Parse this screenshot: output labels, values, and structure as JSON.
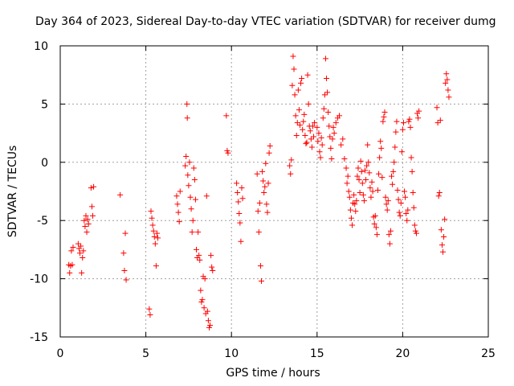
{
  "chart_data": {
    "type": "scatter",
    "title": "Day 364 of 2023, Sidereal Day-to-day VTEC variation (SDTVAR) for receiver dumg",
    "xlabel": "GPS time / hours",
    "ylabel": "SDTVAR / TECUs",
    "xlim": [
      0,
      25
    ],
    "ylim": [
      -15,
      10
    ],
    "xticks": [
      0,
      5,
      10,
      15,
      20,
      25
    ],
    "yticks": [
      -15,
      -10,
      -5,
      0,
      5,
      10
    ],
    "grid": true,
    "marker": "+",
    "color": "#ff0000",
    "points": [
      [
        0.5,
        -8.8
      ],
      [
        0.55,
        -9.5
      ],
      [
        0.6,
        -8.9
      ],
      [
        0.65,
        -7.6
      ],
      [
        0.7,
        -8.8
      ],
      [
        0.75,
        -7.3
      ],
      [
        1.05,
        -7.0
      ],
      [
        1.1,
        -7.4
      ],
      [
        1.15,
        -7.8
      ],
      [
        1.2,
        -7.2
      ],
      [
        1.25,
        -9.5
      ],
      [
        1.3,
        -8.2
      ],
      [
        1.35,
        -7.6
      ],
      [
        1.4,
        -5.0
      ],
      [
        1.45,
        -5.5
      ],
      [
        1.5,
        -4.6
      ],
      [
        1.55,
        -6.0
      ],
      [
        1.6,
        -4.9
      ],
      [
        1.65,
        -5.3
      ],
      [
        1.8,
        -2.2
      ],
      [
        1.85,
        -3.8
      ],
      [
        1.9,
        -4.6
      ],
      [
        1.95,
        -2.1
      ],
      [
        3.5,
        -2.8
      ],
      [
        3.7,
        -7.8
      ],
      [
        3.75,
        -9.3
      ],
      [
        3.8,
        -6.1
      ],
      [
        3.85,
        -10.1
      ],
      [
        5.2,
        -12.6
      ],
      [
        5.25,
        -13.1
      ],
      [
        5.3,
        -4.2
      ],
      [
        5.35,
        -4.8
      ],
      [
        5.4,
        -5.4
      ],
      [
        5.45,
        -5.9
      ],
      [
        5.5,
        -6.4
      ],
      [
        5.55,
        -7.0
      ],
      [
        5.6,
        -8.9
      ],
      [
        5.65,
        -6.1
      ],
      [
        5.7,
        -6.5
      ],
      [
        6.8,
        -2.9
      ],
      [
        6.85,
        -3.6
      ],
      [
        6.9,
        -4.3
      ],
      [
        6.95,
        -5.1
      ],
      [
        7.0,
        -2.5
      ],
      [
        7.3,
        -0.3
      ],
      [
        7.35,
        0.5
      ],
      [
        7.4,
        5.0
      ],
      [
        7.42,
        3.8
      ],
      [
        7.45,
        -1.1
      ],
      [
        7.5,
        -2.0
      ],
      [
        7.55,
        0.0
      ],
      [
        7.6,
        -3.0
      ],
      [
        7.65,
        -4.0
      ],
      [
        7.7,
        -6.0
      ],
      [
        7.75,
        -5.0
      ],
      [
        7.8,
        -0.5
      ],
      [
        7.85,
        -1.5
      ],
      [
        7.9,
        -3.2
      ],
      [
        7.95,
        -7.5
      ],
      [
        8.0,
        -8.2
      ],
      [
        8.05,
        -6.0
      ],
      [
        8.1,
        -8.0
      ],
      [
        8.15,
        -8.4
      ],
      [
        8.2,
        -11.0
      ],
      [
        8.25,
        -12.0
      ],
      [
        8.3,
        -11.8
      ],
      [
        8.35,
        -9.8
      ],
      [
        8.4,
        -12.5
      ],
      [
        8.45,
        -10.0
      ],
      [
        8.5,
        -13.0
      ],
      [
        8.55,
        -2.9
      ],
      [
        8.6,
        -12.8
      ],
      [
        8.65,
        -13.6
      ],
      [
        8.7,
        -14.2
      ],
      [
        8.75,
        -14.0
      ],
      [
        8.8,
        -8.0
      ],
      [
        8.85,
        -9.0
      ],
      [
        8.9,
        -9.3
      ],
      [
        9.7,
        4.0
      ],
      [
        9.75,
        1.0
      ],
      [
        9.8,
        0.8
      ],
      [
        10.3,
        -1.8
      ],
      [
        10.35,
        -2.6
      ],
      [
        10.4,
        -3.4
      ],
      [
        10.45,
        -4.4
      ],
      [
        10.5,
        -5.2
      ],
      [
        10.55,
        -6.8
      ],
      [
        10.6,
        -2.2
      ],
      [
        10.65,
        -3.1
      ],
      [
        11.5,
        -1.0
      ],
      [
        11.55,
        -4.2
      ],
      [
        11.6,
        -6.0
      ],
      [
        11.65,
        -3.5
      ],
      [
        11.7,
        -8.9
      ],
      [
        11.75,
        -10.2
      ],
      [
        11.8,
        -0.8
      ],
      [
        11.85,
        -1.6
      ],
      [
        11.9,
        -2.6
      ],
      [
        11.95,
        -2.1
      ],
      [
        12.0,
        -0.1
      ],
      [
        12.05,
        -3.6
      ],
      [
        12.1,
        -4.3
      ],
      [
        12.15,
        -1.8
      ],
      [
        12.2,
        0.8
      ],
      [
        12.25,
        1.4
      ],
      [
        13.4,
        -0.3
      ],
      [
        13.45,
        -1.0
      ],
      [
        13.5,
        0.2
      ],
      [
        13.55,
        6.6
      ],
      [
        13.6,
        9.1
      ],
      [
        13.65,
        8.0
      ],
      [
        13.7,
        5.8
      ],
      [
        13.75,
        4.0
      ],
      [
        13.8,
        2.3
      ],
      [
        13.85,
        3.4
      ],
      [
        13.9,
        6.2
      ],
      [
        13.95,
        4.5
      ],
      [
        14.0,
        3.2
      ],
      [
        14.05,
        6.8
      ],
      [
        14.1,
        7.2
      ],
      [
        14.15,
        2.8
      ],
      [
        14.2,
        3.5
      ],
      [
        14.25,
        4.1
      ],
      [
        14.3,
        2.3
      ],
      [
        14.35,
        1.6
      ],
      [
        14.4,
        1.7
      ],
      [
        14.45,
        7.5
      ],
      [
        14.5,
        5.0
      ],
      [
        14.55,
        3.1
      ],
      [
        14.6,
        2.7
      ],
      [
        14.65,
        2.0
      ],
      [
        14.7,
        1.3
      ],
      [
        14.75,
        3.1
      ],
      [
        14.8,
        2.2
      ],
      [
        14.85,
        3.4
      ],
      [
        15.0,
        3.0
      ],
      [
        15.05,
        1.8
      ],
      [
        15.1,
        2.5
      ],
      [
        15.15,
        0.9
      ],
      [
        15.2,
        0.4
      ],
      [
        15.25,
        2.1
      ],
      [
        15.3,
        1.5
      ],
      [
        15.35,
        3.8
      ],
      [
        15.4,
        4.6
      ],
      [
        15.45,
        5.8
      ],
      [
        15.5,
        8.9
      ],
      [
        15.55,
        7.2
      ],
      [
        15.6,
        6.0
      ],
      [
        15.65,
        4.3
      ],
      [
        15.7,
        3.1
      ],
      [
        15.75,
        2.2
      ],
      [
        15.8,
        1.2
      ],
      [
        15.85,
        0.3
      ],
      [
        15.9,
        2.0
      ],
      [
        15.95,
        3.0
      ],
      [
        16.0,
        2.5
      ],
      [
        16.1,
        3.4
      ],
      [
        16.2,
        3.8
      ],
      [
        16.3,
        4.0
      ],
      [
        16.4,
        1.5
      ],
      [
        16.5,
        2.0
      ],
      [
        16.6,
        0.3
      ],
      [
        16.7,
        -0.5
      ],
      [
        16.75,
        -1.8
      ],
      [
        16.8,
        -1.2
      ],
      [
        16.85,
        -2.5
      ],
      [
        16.9,
        -3.0
      ],
      [
        16.95,
        -4.1
      ],
      [
        17.0,
        -4.8
      ],
      [
        17.05,
        -5.4
      ],
      [
        17.1,
        -3.5
      ],
      [
        17.15,
        -2.8
      ],
      [
        17.2,
        -3.6
      ],
      [
        17.25,
        -4.2
      ],
      [
        17.3,
        -3.3
      ],
      [
        17.35,
        -1.2
      ],
      [
        17.4,
        -0.5
      ],
      [
        17.45,
        -1.5
      ],
      [
        17.5,
        -2.6
      ],
      [
        17.55,
        0.1
      ],
      [
        17.6,
        -0.8
      ],
      [
        17.65,
        -1.8
      ],
      [
        17.7,
        -2.8
      ],
      [
        17.75,
        -3.3
      ],
      [
        17.8,
        -0.7
      ],
      [
        17.85,
        -1.5
      ],
      [
        17.9,
        -0.3
      ],
      [
        17.95,
        1.5
      ],
      [
        18.0,
        0.0
      ],
      [
        18.05,
        -0.9
      ],
      [
        18.1,
        -2.2
      ],
      [
        18.15,
        -3.0
      ],
      [
        18.2,
        -1.7
      ],
      [
        18.25,
        -2.5
      ],
      [
        18.3,
        -4.7
      ],
      [
        18.35,
        -5.3
      ],
      [
        18.4,
        -4.6
      ],
      [
        18.45,
        -5.6
      ],
      [
        18.5,
        -6.2
      ],
      [
        18.55,
        -2.4
      ],
      [
        18.6,
        -1.0
      ],
      [
        18.65,
        0.4
      ],
      [
        18.7,
        1.8
      ],
      [
        18.75,
        1.2
      ],
      [
        18.8,
        -1.3
      ],
      [
        18.85,
        3.5
      ],
      [
        18.9,
        3.9
      ],
      [
        18.95,
        4.3
      ],
      [
        19.0,
        -3.0
      ],
      [
        19.05,
        -3.6
      ],
      [
        19.1,
        -4.1
      ],
      [
        19.15,
        -3.3
      ],
      [
        19.2,
        -6.2
      ],
      [
        19.25,
        -7.0
      ],
      [
        19.3,
        -5.9
      ],
      [
        19.35,
        -1.2
      ],
      [
        19.4,
        -1.9
      ],
      [
        19.45,
        -0.8
      ],
      [
        19.5,
        0.0
      ],
      [
        19.55,
        1.3
      ],
      [
        19.6,
        2.6
      ],
      [
        19.65,
        3.5
      ],
      [
        19.7,
        -2.4
      ],
      [
        19.75,
        -3.2
      ],
      [
        19.8,
        -4.3
      ],
      [
        19.85,
        -4.6
      ],
      [
        19.9,
        -3.5
      ],
      [
        19.95,
        0.9
      ],
      [
        20.0,
        2.8
      ],
      [
        20.05,
        3.4
      ],
      [
        20.1,
        -2.5
      ],
      [
        20.15,
        -3.0
      ],
      [
        20.2,
        -4.4
      ],
      [
        20.25,
        -5.0
      ],
      [
        20.3,
        -4.1
      ],
      [
        20.35,
        3.5
      ],
      [
        20.4,
        3.7
      ],
      [
        20.45,
        3.0
      ],
      [
        20.5,
        0.4
      ],
      [
        20.55,
        -0.8
      ],
      [
        20.6,
        -2.6
      ],
      [
        20.65,
        -3.9
      ],
      [
        20.7,
        -5.4
      ],
      [
        20.75,
        -5.9
      ],
      [
        20.8,
        -6.1
      ],
      [
        20.85,
        4.2
      ],
      [
        20.9,
        3.8
      ],
      [
        20.95,
        4.4
      ],
      [
        22.0,
        4.7
      ],
      [
        22.05,
        3.4
      ],
      [
        22.1,
        -2.9
      ],
      [
        22.15,
        -2.6
      ],
      [
        22.2,
        3.6
      ],
      [
        22.25,
        -5.8
      ],
      [
        22.3,
        -7.1
      ],
      [
        22.35,
        -7.7
      ],
      [
        22.4,
        -6.4
      ],
      [
        22.45,
        -4.9
      ],
      [
        22.5,
        6.8
      ],
      [
        22.55,
        7.6
      ],
      [
        22.6,
        7.1
      ],
      [
        22.65,
        6.2
      ],
      [
        22.7,
        5.6
      ]
    ]
  }
}
